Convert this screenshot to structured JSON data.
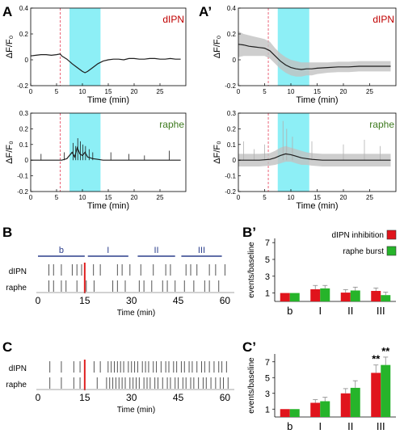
{
  "colors": {
    "trace": "#1e1e1e",
    "trace_gray": "#c2c2c2",
    "stim_cyan": "#2fe1ee",
    "stim_line": "#e8556b",
    "dlpn_label": "#c00000",
    "raphe_label": "#3d7a1e",
    "bar_red": "#e0141c",
    "bar_green": "#26b42a",
    "period_line": "#2c3e8c",
    "event_tick": "#555555",
    "marker_red": "#e02020"
  },
  "panels": {
    "A": "A",
    "A_prime": "A’",
    "B": "B",
    "B_prime": "B’",
    "C": "C",
    "C_prime": "C’"
  },
  "chart_data": [
    {
      "id": "A_top",
      "type": "line",
      "panel_label": "A",
      "region_label": "dIPN",
      "ylabel": "ΔF/F₀",
      "xlabel": "Time (min)",
      "xlim": [
        0,
        30
      ],
      "ylim": [
        -0.2,
        0.4
      ],
      "xticks": [
        0,
        5,
        10,
        15,
        20,
        25
      ],
      "yticks": [
        -0.2,
        0,
        0.2,
        0.4
      ],
      "ytick_labels": [
        "-0.2",
        "0",
        "0.2",
        "0.4"
      ],
      "stim_line_x": 5.7,
      "stim_window": [
        7.5,
        13.5
      ],
      "x": [
        0,
        1,
        2,
        3,
        4,
        5,
        5.7,
        6,
        7,
        8,
        9,
        10,
        10.5,
        11,
        12,
        13,
        14,
        15,
        16,
        17,
        18,
        19,
        20,
        21,
        22,
        23,
        24,
        25,
        26,
        27,
        28,
        29
      ],
      "y": [
        0.03,
        0.035,
        0.04,
        0.04,
        0.035,
        0.04,
        0.045,
        0.03,
        0.005,
        -0.03,
        -0.06,
        -0.09,
        -0.1,
        -0.09,
        -0.06,
        -0.03,
        -0.01,
        0,
        0.005,
        0.005,
        0,
        0.01,
        0.01,
        0.005,
        0.005,
        0.01,
        0.01,
        0.005,
        0.005,
        0.01,
        0.005,
        0.005
      ]
    },
    {
      "id": "A_prime_top",
      "type": "line",
      "panel_label": "A’",
      "region_label": "dIPN",
      "ylabel": "ΔF/F₀",
      "xlabel": "Time (min)",
      "xlim": [
        0,
        30
      ],
      "ylim": [
        -0.2,
        0.4
      ],
      "xticks": [
        0,
        5,
        10,
        15,
        20,
        25
      ],
      "yticks": [
        -0.2,
        0,
        0.2,
        0.4
      ],
      "ytick_labels": [
        "-0.2",
        "0",
        "0.2",
        "0.4"
      ],
      "stim_line_x": 5.7,
      "stim_window": [
        7.5,
        13.5
      ],
      "x": [
        0,
        1,
        2,
        3,
        4,
        5,
        6,
        7,
        8,
        9,
        10,
        11,
        12,
        13,
        14,
        15,
        17,
        19,
        21,
        23,
        25,
        27,
        29
      ],
      "y": [
        0.12,
        0.115,
        0.105,
        0.1,
        0.095,
        0.09,
        0.07,
        0.03,
        -0.01,
        -0.04,
        -0.06,
        -0.07,
        -0.075,
        -0.07,
        -0.07,
        -0.065,
        -0.06,
        -0.055,
        -0.055,
        -0.05,
        -0.05,
        -0.05,
        -0.05
      ],
      "band_upper": [
        0.22,
        0.2,
        0.19,
        0.18,
        0.17,
        0.16,
        0.14,
        0.09,
        0.05,
        0.02,
        0,
        -0.01,
        -0.02,
        -0.02,
        -0.02,
        -0.02,
        -0.02,
        -0.015,
        -0.015,
        -0.01,
        -0.01,
        -0.01,
        -0.01
      ],
      "band_lower": [
        0.02,
        0.03,
        0.03,
        0.03,
        0.03,
        0.03,
        0.01,
        -0.03,
        -0.07,
        -0.1,
        -0.12,
        -0.13,
        -0.13,
        -0.12,
        -0.12,
        -0.11,
        -0.1,
        -0.095,
        -0.095,
        -0.09,
        -0.09,
        -0.09,
        -0.09
      ]
    },
    {
      "id": "A_bottom",
      "type": "line",
      "region_label": "raphe",
      "ylabel": "ΔF/F₀",
      "xlabel": "Time (min)",
      "xlim": [
        0,
        30
      ],
      "ylim": [
        -0.2,
        0.3
      ],
      "xticks": [
        0,
        5,
        10,
        15,
        20,
        25
      ],
      "yticks": [
        -0.2,
        -0.1,
        0,
        0.1,
        0.2,
        0.3
      ],
      "ytick_labels": [
        "-0.2",
        "-0.1",
        "0",
        "0.1",
        "0.2",
        "0.3"
      ],
      "stim_line_x": 5.7,
      "stim_window": [
        7.5,
        13.5
      ],
      "x": [
        0,
        1,
        2,
        3,
        4,
        5,
        6,
        7,
        8,
        8.5,
        9,
        9.5,
        10,
        10.5,
        11,
        12,
        13,
        14,
        15,
        16,
        17,
        18,
        19,
        20,
        21,
        22,
        23,
        24,
        25,
        26,
        27,
        28,
        29
      ],
      "y": [
        0,
        0,
        0,
        0,
        0,
        0,
        0,
        0.01,
        0.05,
        0.02,
        0.08,
        0.04,
        0.03,
        0.05,
        0.02,
        0.01,
        0.005,
        0,
        0,
        0,
        0,
        0,
        0,
        0,
        0,
        0,
        0,
        0,
        0,
        0,
        0,
        0,
        0
      ],
      "spikes_x": [
        2,
        6.5,
        8.2,
        8.7,
        9.1,
        9.6,
        10.1,
        10.6,
        11.3,
        12,
        15.5,
        19,
        22,
        26.8
      ],
      "spikes_y": [
        0.04,
        0.05,
        0.11,
        0.09,
        0.14,
        0.12,
        0.1,
        0.09,
        0.07,
        0.05,
        0.05,
        0.04,
        0.03,
        0.06
      ]
    },
    {
      "id": "A_prime_bottom",
      "type": "line",
      "region_label": "raphe",
      "ylabel": "ΔF/F₀",
      "xlabel": "Time (min)",
      "xlim": [
        0,
        30
      ],
      "ylim": [
        -0.2,
        0.3
      ],
      "xticks": [
        0,
        5,
        10,
        15,
        20,
        25
      ],
      "yticks": [
        -0.2,
        -0.1,
        0,
        0.1,
        0.2,
        0.3
      ],
      "ytick_labels": [
        "-0.2",
        "-0.1",
        "0",
        "0.1",
        "0.2",
        "0.3"
      ],
      "stim_line_x": 5.7,
      "stim_window": [
        7.5,
        13.5
      ],
      "x": [
        0,
        2,
        4,
        6,
        7,
        8,
        9,
        10,
        11,
        12,
        13,
        14,
        16,
        18,
        20,
        22,
        24,
        26,
        28,
        29
      ],
      "y": [
        0,
        0,
        0,
        0.005,
        0.015,
        0.03,
        0.04,
        0.035,
        0.025,
        0.015,
        0.01,
        0.005,
        0,
        0,
        0,
        0,
        0,
        0,
        0,
        0
      ],
      "band_upper": [
        0.04,
        0.04,
        0.04,
        0.045,
        0.06,
        0.08,
        0.09,
        0.08,
        0.07,
        0.06,
        0.05,
        0.045,
        0.04,
        0.04,
        0.04,
        0.04,
        0.04,
        0.04,
        0.04,
        0.04
      ],
      "band_lower": [
        -0.04,
        -0.04,
        -0.04,
        -0.035,
        -0.03,
        -0.02,
        -0.01,
        -0.01,
        -0.02,
        -0.03,
        -0.03,
        -0.035,
        -0.04,
        -0.04,
        -0.04,
        -0.04,
        -0.04,
        -0.04,
        -0.04,
        -0.04
      ],
      "spikes_x": [
        1,
        3,
        5,
        8.5,
        9.2,
        10.3,
        14,
        20,
        24,
        27
      ],
      "spikes_y": [
        0.12,
        0.07,
        0.1,
        0.25,
        0.2,
        0.15,
        0.12,
        0.1,
        0.13,
        0.09
      ]
    },
    {
      "id": "B_raster",
      "type": "scatter",
      "panel_label": "B",
      "xlabel": "Time (min)",
      "xlim": [
        0,
        63
      ],
      "xticks": [
        0,
        15,
        30,
        45,
        60
      ],
      "rows": [
        "dIPN",
        "raphe"
      ],
      "period_labels": [
        "b",
        "I",
        "II",
        "III"
      ],
      "period_spans": [
        [
          0,
          15
        ],
        [
          16,
          29
        ],
        [
          32,
          44
        ],
        [
          46,
          59
        ]
      ],
      "marker_x": 15,
      "dlpn_events": [
        3.5,
        5,
        7.5,
        11,
        12.5,
        14,
        17.8,
        20,
        25.5,
        27,
        29.5,
        33,
        37,
        41,
        42.5,
        47.5,
        49,
        51,
        55,
        57,
        60
      ],
      "raphe_events": [
        3.5,
        5,
        7.5,
        9,
        12.5,
        15.5,
        18,
        24,
        25.5,
        28,
        32.5,
        34,
        36.5,
        40,
        41.5,
        44,
        47,
        50,
        53.5,
        55,
        58
      ]
    },
    {
      "id": "C_raster",
      "type": "scatter",
      "panel_label": "C",
      "xlabel": "Time (min)",
      "xlim": [
        0,
        63
      ],
      "xticks": [
        0,
        15,
        30,
        45,
        60
      ],
      "rows": [
        "dIPN",
        "raphe"
      ],
      "marker_x": 15,
      "dlpn_events": [
        3.8,
        7.5,
        11.5,
        13.5,
        18,
        20,
        22.5,
        23.5,
        24.5,
        25.5,
        26.5,
        27.5,
        29,
        30,
        31,
        32,
        33.5,
        34.5,
        35.5,
        37,
        38,
        39.5,
        41,
        42,
        43.5,
        44.5,
        46,
        47,
        48.5,
        49.5,
        51,
        52.5,
        53.5,
        55,
        56.5,
        58,
        59,
        60.5
      ],
      "raphe_events": [
        3.8,
        7.5,
        11.5,
        13.5,
        19,
        22,
        23,
        24,
        25,
        26,
        27,
        28,
        29.5,
        30.5,
        31.5,
        32.5,
        34,
        35,
        36,
        37.5,
        38.5,
        40,
        41.5,
        42.5,
        44,
        45,
        46.5,
        47.5,
        49,
        50,
        51.5,
        53,
        54,
        55.5,
        57,
        58.5,
        59.5,
        61
      ]
    },
    {
      "id": "B_prime_bar",
      "type": "bar",
      "panel_label": "B’",
      "ylabel": "events/baseline",
      "categories": [
        "b",
        "I",
        "II",
        "III"
      ],
      "ylim": [
        0,
        7.5
      ],
      "yticks": [
        1,
        3,
        5,
        7
      ],
      "series": [
        {
          "name": "dIPN inhibition",
          "values": [
            1,
            1.45,
            1.05,
            1.25
          ],
          "errors": [
            0,
            0.45,
            0.35,
            0.35
          ]
        },
        {
          "name": "raphe burst",
          "values": [
            1,
            1.55,
            1.3,
            0.75
          ],
          "errors": [
            0,
            0.35,
            0.4,
            0.35
          ]
        }
      ],
      "legend_position": "top-right"
    },
    {
      "id": "C_prime_bar",
      "type": "bar",
      "panel_label": "C’",
      "ylabel": "events/baseline",
      "categories": [
        "b",
        "I",
        "II",
        "III"
      ],
      "ylim": [
        0,
        8
      ],
      "yticks": [
        1,
        3,
        5,
        7
      ],
      "series": [
        {
          "name": "dIPN inhibition",
          "values": [
            1,
            1.8,
            3,
            5.6
          ],
          "errors": [
            0,
            0.4,
            0.6,
            1
          ]
        },
        {
          "name": "raphe burst",
          "values": [
            1,
            2,
            3.7,
            6.6
          ],
          "errors": [
            0,
            0.5,
            0.9,
            1
          ]
        }
      ],
      "annotations": [
        {
          "category": "III",
          "series": 0,
          "text": "**"
        },
        {
          "category": "III",
          "series": 1,
          "text": "**"
        }
      ]
    }
  ]
}
